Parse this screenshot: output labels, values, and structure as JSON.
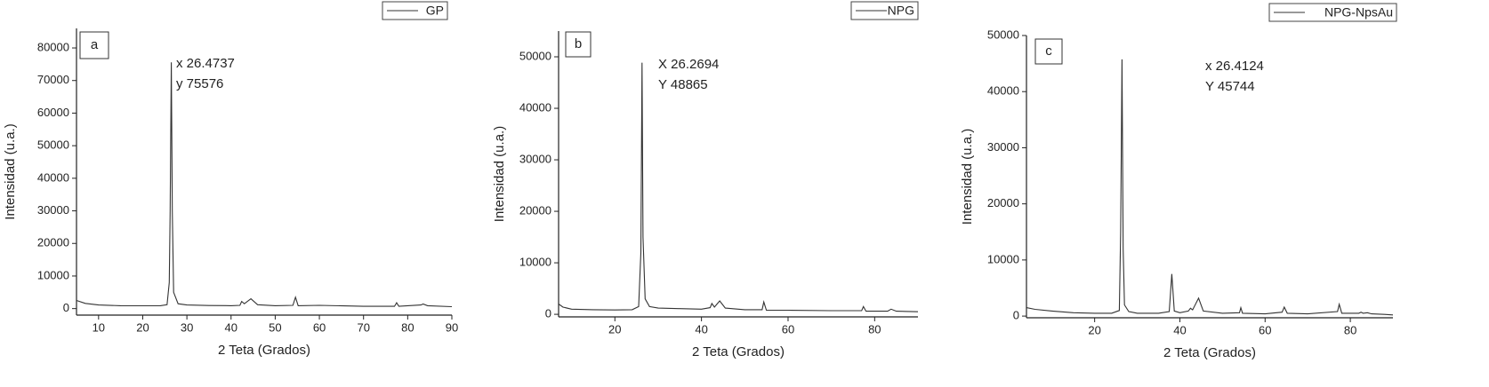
{
  "chart_data": [
    {
      "type": "line",
      "panel_label": "a",
      "x_label": "2 Teta (Grados)",
      "y_label": "Intensidad (u.a.)",
      "legend_position": "top right",
      "annotations": [
        "x 26.4737",
        "y 75576"
      ],
      "xlim": [
        5,
        90
      ],
      "ylim": [
        -2000,
        86000
      ],
      "xticks": [
        10,
        20,
        30,
        40,
        50,
        60,
        70,
        80,
        90
      ],
      "yticks": [
        0,
        10000,
        20000,
        30000,
        40000,
        50000,
        60000,
        70000,
        80000
      ],
      "x": [
        5,
        7,
        10,
        15,
        20,
        24,
        25.5,
        26,
        26.2,
        26.47,
        26.7,
        27,
        28,
        30,
        35,
        40,
        42,
        42.4,
        43,
        44.5,
        46,
        50,
        54,
        54.6,
        55.2,
        60,
        70,
        77,
        77.5,
        78,
        83,
        83.5,
        84.5,
        90
      ],
      "series": [
        {
          "name": "GP",
          "color": "#333333",
          "values": [
            2500,
            1600,
            1100,
            900,
            850,
            900,
            1200,
            8000,
            30000,
            75576,
            30000,
            5000,
            1500,
            1100,
            950,
            900,
            1000,
            2200,
            1500,
            3000,
            1200,
            900,
            1000,
            3500,
            900,
            1000,
            700,
            700,
            1800,
            700,
            1100,
            1400,
            900,
            600
          ]
        }
      ]
    },
    {
      "type": "line",
      "panel_label": "b",
      "x_label": "2 Teta (Grados)",
      "y_label": "Intensidad (u.a.)",
      "legend_position": "top right",
      "annotations": [
        "X 26.2694",
        "Y 48865"
      ],
      "xlim": [
        7,
        90
      ],
      "ylim": [
        -500,
        55000
      ],
      "xticks": [
        20,
        40,
        60,
        80
      ],
      "yticks": [
        0,
        10000,
        20000,
        30000,
        40000,
        50000
      ],
      "x": [
        7,
        8,
        10,
        15,
        20,
        24,
        25.5,
        26,
        26.27,
        26.5,
        27,
        28,
        30,
        35,
        40,
        42,
        42.4,
        43,
        44.2,
        45.5,
        50,
        54,
        54.4,
        55,
        60,
        70,
        77,
        77.4,
        78,
        83,
        83.8,
        85,
        90
      ],
      "series": [
        {
          "name": "NPG",
          "color": "#333333",
          "values": [
            2000,
            1400,
            1000,
            900,
            850,
            900,
            1500,
            12000,
            48865,
            15000,
            3000,
            1500,
            1200,
            1100,
            1000,
            1300,
            2100,
            1400,
            2600,
            1200,
            900,
            900,
            2400,
            800,
            800,
            700,
            700,
            1500,
            600,
            600,
            1000,
            600,
            500
          ]
        }
      ]
    },
    {
      "type": "line",
      "panel_label": "c",
      "x_label": "2 Teta (Grados)",
      "y_label": "Intensidad (u.a.)",
      "legend_position": "top right",
      "annotations": [
        "x 26.4124",
        "Y 45744"
      ],
      "xlim": [
        4,
        90
      ],
      "ylim": [
        -300,
        50000
      ],
      "xticks": [
        20,
        40,
        60,
        80
      ],
      "yticks": [
        0,
        10000,
        20000,
        30000,
        40000,
        50000
      ],
      "x": [
        4,
        6,
        10,
        15,
        20,
        24,
        25.8,
        26.1,
        26.41,
        26.7,
        27,
        28,
        30,
        35,
        37.5,
        38.1,
        38.7,
        40,
        42,
        42.5,
        43,
        44.4,
        45.5,
        50,
        54,
        54.3,
        54.7,
        60,
        64,
        64.5,
        65.2,
        70,
        77,
        77.4,
        78,
        82,
        82.5,
        83,
        84,
        85,
        88,
        90
      ],
      "series": [
        {
          "name": "NPG-NpsAu",
          "color": "#333333",
          "values": [
            1500,
            1200,
            900,
            600,
            500,
            500,
            1000,
            15000,
            45744,
            12000,
            2000,
            800,
            500,
            500,
            800,
            7500,
            900,
            600,
            900,
            1400,
            1100,
            3200,
            900,
            500,
            600,
            1500,
            500,
            400,
            700,
            1600,
            500,
            400,
            800,
            2100,
            500,
            500,
            700,
            500,
            600,
            400,
            300,
            200
          ]
        }
      ]
    }
  ]
}
